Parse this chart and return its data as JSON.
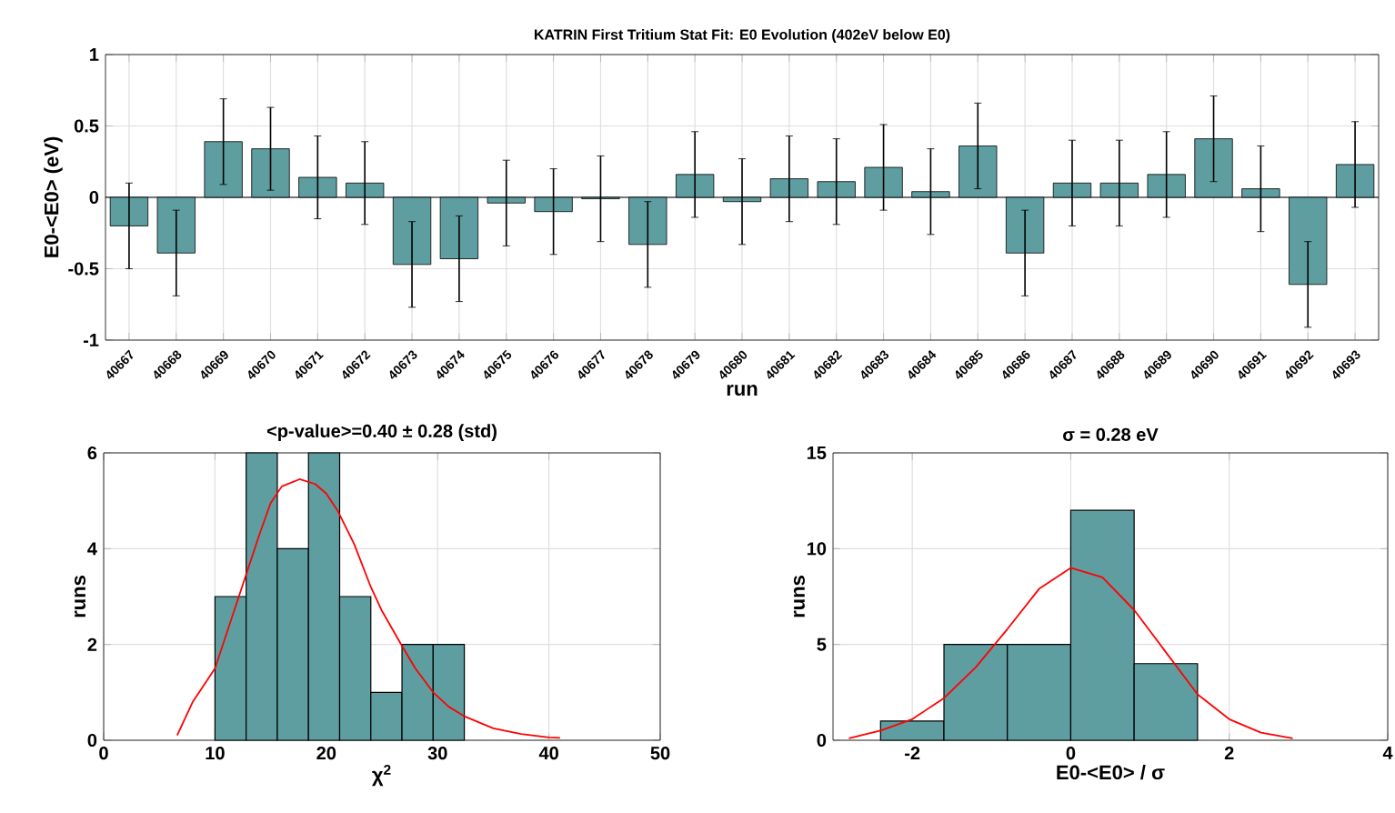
{
  "chart_data": [
    {
      "type": "bar",
      "title": "KATRIN First Tritium Stat Fit: E0 Evolution (402eV below E0)",
      "xlabel": "run",
      "ylabel": "E0-<E0> (eV)",
      "categories": [
        "40667",
        "40668",
        "40669",
        "40670",
        "40671",
        "40672",
        "40673",
        "40674",
        "40675",
        "40676",
        "40677",
        "40678",
        "40679",
        "40680",
        "40681",
        "40682",
        "40683",
        "40684",
        "40685",
        "40686",
        "40687",
        "40688",
        "40689",
        "40690",
        "40691",
        "40692",
        "40693"
      ],
      "values": [
        -0.2,
        -0.39,
        0.39,
        0.34,
        0.14,
        0.1,
        -0.47,
        -0.43,
        -0.04,
        -0.1,
        -0.01,
        -0.33,
        0.16,
        -0.03,
        0.13,
        0.11,
        0.21,
        0.04,
        0.36,
        -0.39,
        0.1,
        0.1,
        0.16,
        0.41,
        0.06,
        -0.61,
        0.23
      ],
      "errors": [
        0.3,
        0.3,
        0.3,
        0.29,
        0.29,
        0.29,
        0.3,
        0.3,
        0.3,
        0.3,
        0.3,
        0.3,
        0.3,
        0.3,
        0.3,
        0.3,
        0.3,
        0.3,
        0.3,
        0.3,
        0.3,
        0.3,
        0.3,
        0.3,
        0.3,
        0.3,
        0.3
      ],
      "color": "#5f9ea0",
      "ylim": [
        -1,
        1
      ],
      "yticks": [
        -1,
        -0.5,
        0,
        0.5,
        1
      ],
      "grid": true
    },
    {
      "type": "histogram",
      "title": "<p-value>=0.40 ± 0.28 (std)",
      "xlabel": "χ$^{2}$",
      "ylabel": "runs",
      "bins": [
        10,
        12.8,
        15.6,
        18.4,
        21.2,
        24,
        26.8,
        29.6,
        32.4
      ],
      "values": [
        3,
        6,
        4,
        6,
        3,
        1,
        2,
        2
      ],
      "color": "#5f9ea0",
      "series": [
        {
          "type": "line",
          "color": "#ff0000",
          "x": [
            6.6,
            8,
            10,
            12,
            14,
            15,
            16,
            17.6,
            19,
            20,
            21,
            22.5,
            24,
            25,
            26.8,
            28,
            29.6,
            31,
            32.4,
            35,
            37.5,
            40,
            41
          ],
          "values": [
            0.1,
            0.8,
            1.5,
            2.9,
            4.3,
            4.95,
            5.3,
            5.45,
            5.35,
            5.15,
            4.8,
            4.1,
            3.2,
            2.7,
            1.97,
            1.5,
            1.0,
            0.7,
            0.5,
            0.25,
            0.13,
            0.06,
            0.05
          ]
        }
      ],
      "xlim": [
        0,
        50
      ],
      "xticks": [
        0,
        10,
        20,
        30,
        40,
        50
      ],
      "ylim": [
        0,
        6
      ],
      "yticks": [
        0,
        2,
        4,
        6
      ],
      "grid": true
    },
    {
      "type": "histogram",
      "title": "σ = 0.28 eV",
      "xlabel": "E0-<E0> / σ",
      "ylabel": "runs",
      "bins": [
        -2.4,
        -1.6,
        -0.8,
        0,
        0.8,
        1.6
      ],
      "values": [
        1,
        5,
        5,
        12,
        4
      ],
      "color": "#5f9ea0",
      "series": [
        {
          "type": "line",
          "color": "#ff0000",
          "x": [
            -2.8,
            -2.4,
            -2,
            -1.6,
            -1.2,
            -0.8,
            -0.4,
            0,
            0.4,
            0.8,
            1.2,
            1.6,
            2,
            2.4,
            2.8
          ],
          "values": [
            0.1,
            0.5,
            1.1,
            2.2,
            3.8,
            5.8,
            7.9,
            9,
            8.5,
            6.8,
            4.6,
            2.4,
            1.1,
            0.4,
            0.1
          ]
        }
      ],
      "xlim": [
        -3,
        4
      ],
      "xticks": [
        -2,
        0,
        2,
        4
      ],
      "ylim": [
        0,
        15
      ],
      "yticks": [
        0,
        5,
        10,
        15
      ],
      "grid": true
    }
  ]
}
